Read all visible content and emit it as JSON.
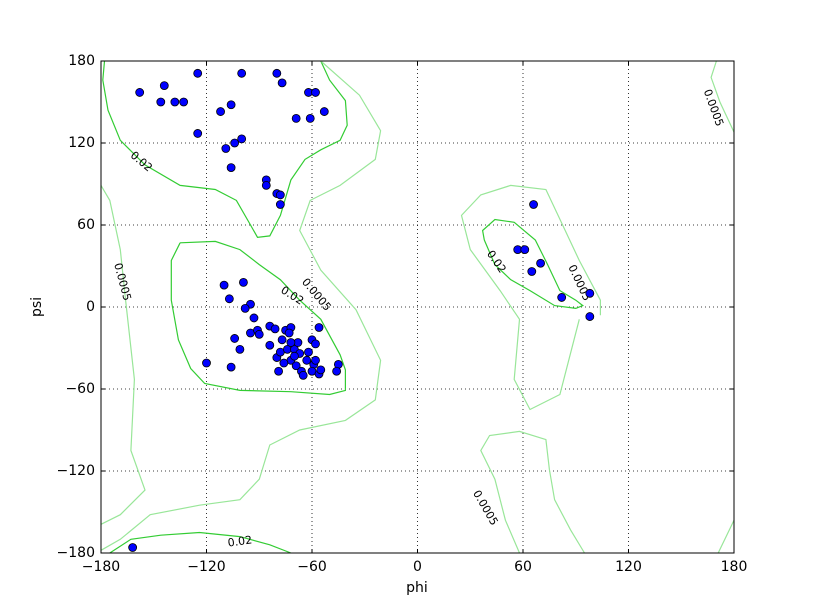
{
  "chart_data": {
    "type": "scatter",
    "xlabel": "phi",
    "ylabel": "psi",
    "color": "#0000ff",
    "edgecolor": "#000000",
    "grid": true,
    "xlim": [
      -180,
      180
    ],
    "ylim": [
      -180,
      180
    ],
    "xticks": [
      {
        "value": -180,
        "label": "−180"
      },
      {
        "value": -120,
        "label": "−120"
      },
      {
        "value": -60,
        "label": "−60"
      },
      0,
      60,
      120,
      180
    ],
    "yticks": [
      {
        "value": -180,
        "label": "−180"
      },
      {
        "value": -120,
        "label": "−120"
      },
      {
        "value": -60,
        "label": "−60"
      },
      0,
      60,
      120,
      180
    ],
    "x": [
      -158,
      -144,
      -146,
      -138,
      -133,
      -125,
      -100,
      -80,
      -77,
      -106,
      -112,
      -125,
      -109,
      -104,
      -100,
      -106,
      -69,
      -61,
      -62,
      -58,
      -53,
      -86,
      -86,
      -80,
      -78,
      -78,
      -110,
      -99,
      -107,
      -95,
      -98,
      -93,
      -104,
      -95,
      -91,
      -90,
      -101,
      -120,
      -106,
      -84,
      -81,
      -84,
      -75,
      -72,
      -73,
      -77,
      -80,
      -78,
      -74,
      -79,
      -72,
      -70,
      -68,
      -67,
      -69,
      -66,
      -65,
      -63,
      -62,
      -60,
      -58,
      -59,
      -58,
      -60,
      -56,
      -55,
      -56,
      -45,
      -46,
      -72,
      -70,
      -76,
      -162,
      66,
      57,
      61,
      70,
      65,
      82,
      98,
      98
    ],
    "y": [
      157,
      162,
      150,
      150,
      150,
      171,
      171,
      171,
      164,
      148,
      143,
      127,
      116,
      120,
      123,
      102,
      138,
      138,
      157,
      157,
      143,
      93,
      89,
      83,
      82,
      75,
      16,
      18,
      6,
      2,
      -1,
      -8,
      -23,
      -19,
      -17,
      -20,
      -31,
      -41,
      -44,
      -14,
      -16,
      -28,
      -17,
      -15,
      -19,
      -24,
      -37,
      -33,
      -31,
      -47,
      -39,
      -31,
      -26,
      -34,
      -43,
      -47,
      -50,
      -39,
      -33,
      -24,
      -27,
      -42,
      -39,
      -47,
      -49,
      -46,
      -15,
      -42,
      -47,
      -26,
      -36,
      -41,
      -176,
      75,
      42,
      42,
      32,
      26,
      7,
      10,
      -7
    ],
    "contours": [
      {
        "label": "0.02",
        "color": "#33cc33",
        "paths": [
          {
            "x": [
              -178,
              -179,
              -176,
              -169,
              -155,
              -135,
              -115,
              -103,
              -95,
              -91,
              -84,
              -78,
              -72,
              -64,
              -55,
              -44,
              -40,
              -41,
              -50,
              -55
            ],
            "y": [
              180,
              166,
              144,
              122,
              104,
              89,
              86,
              78,
              60,
              51,
              52,
              67,
              93,
              108,
              115,
              122,
              133,
              151,
              166,
              180
            ]
          },
          {
            "x": [
              -135,
              -140,
              -140,
              -136,
              -129,
              -121,
              -101,
              -72,
              -50,
              -41,
              -41,
              -44,
              -55,
              -67,
              -78,
              -90,
              -101,
              -115,
              -135
            ],
            "y": [
              47,
              34,
              5,
              -24,
              -45,
              -56,
              -61,
              -62,
              -64,
              -61,
              -46,
              -35,
              -9,
              5,
              20,
              31,
              42,
              48,
              47
            ]
          },
          {
            "x": [
              38,
              37,
              44,
              55,
              67,
              74,
              81,
              90,
              94,
              90,
              78,
              64,
              53,
              44,
              38
            ],
            "y": [
              49,
              56,
              64,
              62,
              49,
              31,
              12,
              5,
              1,
              -1,
              1,
              12,
              20,
              31,
              49
            ]
          },
          {
            "x": [
              -175,
              -163,
              -146,
              -124,
              -101,
              -84,
              -72
            ],
            "y": [
              -180,
              -170,
              -167,
              -165,
              -168,
              -174,
              -180
            ]
          }
        ]
      },
      {
        "label": "0.0005",
        "color": "#99e699",
        "paths": [
          {
            "x": [
              -180,
              -175,
              -169,
              -166,
              -161,
              -163,
              -155,
              -169,
              -180
            ],
            "y": [
              89,
              78,
              42,
              5,
              -53,
              -105,
              -134,
              -152,
              -159
            ]
          },
          {
            "x": [
              -55,
              -33,
              -21,
              -24,
              -44,
              -61,
              -67,
              -55,
              -35,
              -21,
              -24,
              -41,
              -67,
              -84,
              -90,
              -101,
              -124,
              -152,
              -169,
              -180
            ],
            "y": [
              180,
              155,
              129,
              108,
              89,
              78,
              56,
              27,
              -2,
              -39,
              -68,
              -83,
              -90,
              -101,
              -126,
              -141,
              -145,
              -152,
              -170,
              -178
            ]
          },
          {
            "x": [
              58,
              50,
              44,
              36,
              41,
              58,
              73,
              75,
              78,
              87,
              95
            ],
            "y": [
              -180,
              -156,
              -126,
              -105,
              -94,
              -91,
              -97,
              -119,
              -141,
              -163,
              -180
            ]
          },
          {
            "x": [
              92,
              81,
              64,
              55,
              58,
              47,
              30,
              25,
              36,
              53,
              73,
              84,
              92,
              104,
              104
            ],
            "y": [
              -9,
              -64,
              -75,
              -53,
              -9,
              12,
              42,
              67,
              82,
              89,
              86,
              56,
              34,
              5,
              -6
            ]
          },
          {
            "x": [
              170,
              167,
              172,
              180
            ],
            "y": [
              180,
              168,
              150,
              128
            ]
          },
          {
            "x": [
              171,
              180
            ],
            "y": [
              -180,
              -156
            ]
          }
        ]
      }
    ]
  }
}
